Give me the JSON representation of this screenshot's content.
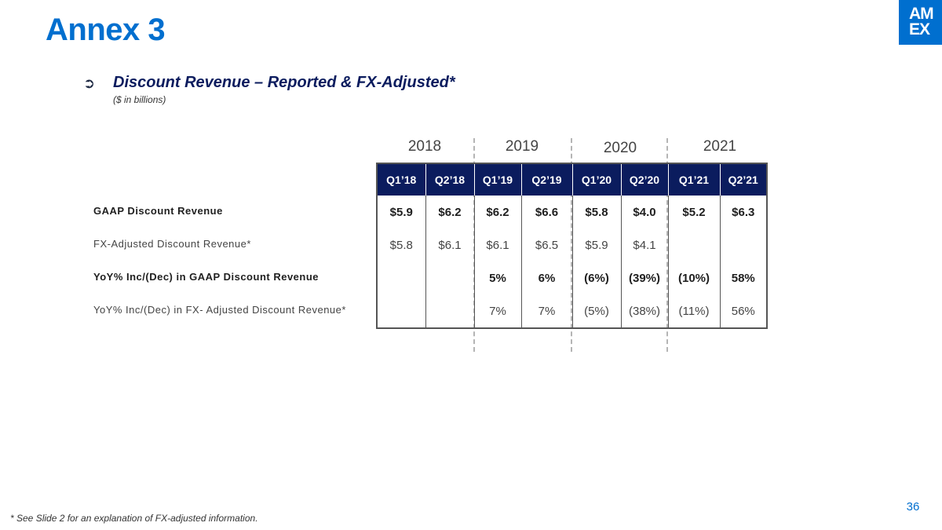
{
  "slide": {
    "title": "Annex 3",
    "subtitle": "Discount Revenue – Reported & FX-Adjusted*",
    "units": "($ in billions)",
    "bullet_icon": "arrow-right-circle-icon",
    "page_number": "36",
    "footnote": "* See Slide 2 for an explanation of FX-adjusted information."
  },
  "logo": {
    "line1": "AM",
    "line2": "EX",
    "color": "#006fcf"
  },
  "years": [
    "2018",
    "2019",
    "2020",
    "2021"
  ],
  "table": {
    "columns": [
      "Q1’18",
      "Q2’18",
      "Q1’19",
      "Q2’19",
      "Q1’20",
      "Q2’20",
      "Q1’21",
      "Q2’21"
    ],
    "rows": [
      {
        "label": "GAAP Discount Revenue",
        "bold": true,
        "values": [
          "$5.9",
          "$6.2",
          "$6.2",
          "$6.6",
          "$5.8",
          "$4.0",
          "$5.2",
          "$6.3"
        ]
      },
      {
        "label": "FX-Adjusted Discount Revenue*",
        "bold": false,
        "values": [
          "$5.8",
          "$6.1",
          "$6.1",
          "$6.5",
          "$5.9",
          "$4.1",
          "",
          ""
        ]
      },
      {
        "label": "YoY% Inc/(Dec) in GAAP Discount Revenue",
        "bold": true,
        "values": [
          "",
          "",
          "5%",
          "6%",
          "(6%)",
          "(39%)",
          "(10%)",
          "58%"
        ]
      },
      {
        "label": "YoY% Inc/(Dec) in FX- Adjusted Discount Revenue*",
        "bold": false,
        "values": [
          "",
          "",
          "7%",
          "7%",
          "(5%)",
          "(38%)",
          "(11%)",
          "56%"
        ]
      }
    ]
  },
  "colors": {
    "title": "#006fcf",
    "header_bg": "#0b1c5e",
    "subtitle": "#0b1c5e"
  }
}
